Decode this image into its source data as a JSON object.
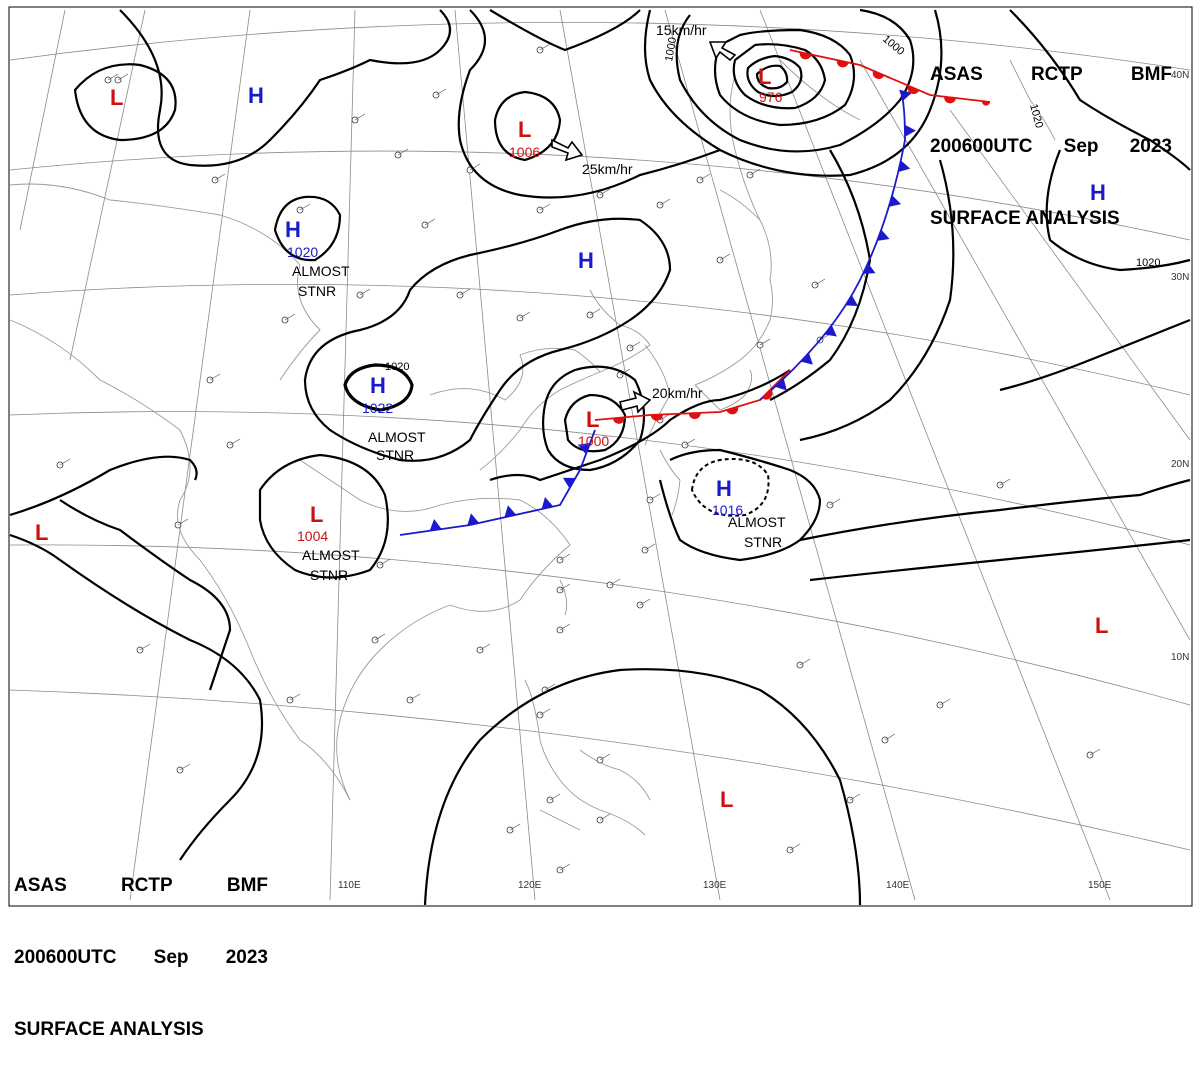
{
  "header": {
    "line1": [
      "ASAS",
      "RCTP",
      "BMF"
    ],
    "line2": [
      "200600UTC",
      "Sep",
      "2023"
    ],
    "line3": "SURFACE ANALYSIS"
  },
  "pressure_centers": [
    {
      "type": "H",
      "value": ""
    },
    {
      "type": "H",
      "value": "1020"
    },
    {
      "type": "H",
      "value": "1022"
    },
    {
      "type": "H",
      "value": ""
    },
    {
      "type": "H",
      "value": "1016"
    },
    {
      "type": "H",
      "value": ""
    },
    {
      "type": "L",
      "value": ""
    },
    {
      "type": "L",
      "value": "1006"
    },
    {
      "type": "L",
      "value": "976"
    },
    {
      "type": "L",
      "value": "1000"
    },
    {
      "type": "L",
      "value": "1004"
    },
    {
      "type": "L",
      "value": ""
    },
    {
      "type": "L",
      "value": ""
    },
    {
      "type": "L",
      "value": ""
    }
  ],
  "almost_stnr_label": [
    "ALMOST",
    "STNR"
  ],
  "motion_labels": [
    "15km/hr",
    "25km/hr",
    "20km/hr"
  ],
  "isobar_labels": [
    "1000",
    "1000",
    "1020",
    "1020",
    "1020"
  ],
  "longitudes": [
    "110E",
    "120E",
    "130E",
    "140E",
    "150E"
  ],
  "latitudes": [
    "40N",
    "30N",
    "20N",
    "10N"
  ],
  "colors": {
    "high": "#1a1acc",
    "low": "#cc1111",
    "warm_front": "#e01010",
    "cold_front": "#1a1acc",
    "isobar": "#000000",
    "grid": "#8a8a8a",
    "coast": "#9a9a9a"
  }
}
